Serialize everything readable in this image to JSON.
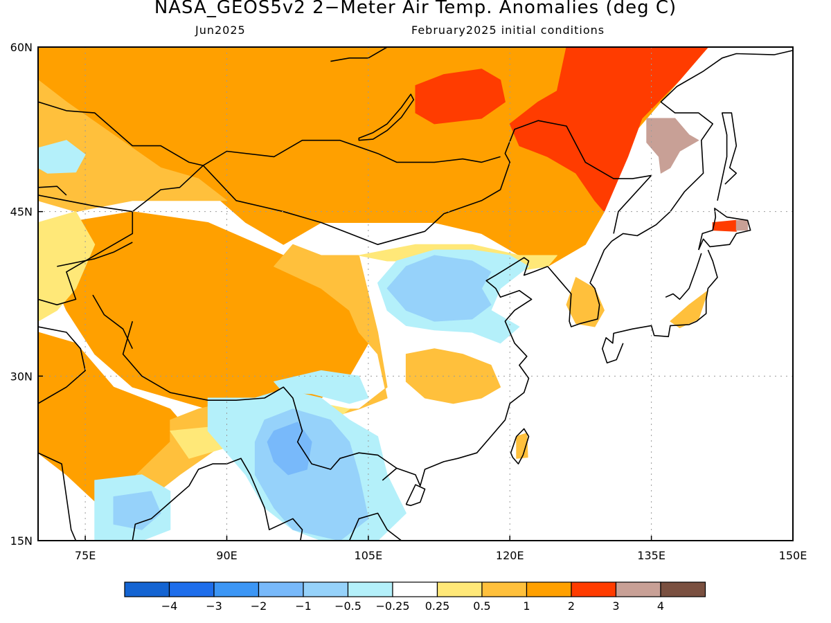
{
  "header": {
    "title": "NASA_GEOS5v2 2−Meter Air Temp. Anomalies (deg C)",
    "valid_month": "Jun2025",
    "init_conditions": "February2025 initial conditions"
  },
  "map": {
    "lon_range": [
      70,
      150
    ],
    "lat_range": [
      15,
      60
    ],
    "lat_ticks": [
      {
        "value": 15,
        "label": "15N"
      },
      {
        "value": 30,
        "label": "30N"
      },
      {
        "value": 45,
        "label": "45N"
      },
      {
        "value": 60,
        "label": "60N"
      }
    ],
    "lon_ticks": [
      {
        "value": 75,
        "label": "75E"
      },
      {
        "value": 90,
        "label": "90E"
      },
      {
        "value": 105,
        "label": "105E"
      },
      {
        "value": 120,
        "label": "120E"
      },
      {
        "value": 135,
        "label": "135E"
      },
      {
        "value": 150,
        "label": "150E"
      }
    ],
    "grid_lines": true,
    "background_color": "#ffffff"
  },
  "colorbar": {
    "colors": [
      "#1464d2",
      "#1e6eeb",
      "#3c96f5",
      "#78b9fa",
      "#96d2fa",
      "#b4f0fa",
      "#ffffff",
      "#ffe878",
      "#ffc03c",
      "#ffa000",
      "#ff3c00",
      "#c8a096",
      "#7a5040"
    ],
    "labels": [
      "−4",
      "−3",
      "−2",
      "−1",
      "−0.5",
      "−0.25",
      "0.25",
      "0.5",
      "1",
      "2",
      "3",
      "4"
    ]
  },
  "chart_data": {
    "type": "heatmap",
    "title": "NASA_GEOS5v2 2−Meter Air Temp. Anomalies (deg C)",
    "subtitle": "Jun2025 | February2025 initial conditions",
    "xlabel": "",
    "ylabel": "",
    "xlim": [
      70,
      150
    ],
    "ylim": [
      15,
      60
    ],
    "units": "deg C",
    "levels": [
      -4,
      -3,
      -2,
      -1,
      -0.5,
      -0.25,
      0.25,
      0.5,
      1,
      2,
      3,
      4
    ],
    "regions": [
      {
        "anomaly": 1.5,
        "polygon": [
          [
            70,
            60
          ],
          [
            141,
            60
          ],
          [
            138,
            57
          ],
          [
            132,
            51
          ],
          [
            130,
            45
          ],
          [
            128,
            42
          ],
          [
            124,
            40
          ],
          [
            121,
            41
          ],
          [
            117,
            43
          ],
          [
            112,
            44
          ],
          [
            106,
            44
          ],
          [
            100,
            44
          ],
          [
            96,
            42
          ],
          [
            92,
            44
          ],
          [
            88,
            47
          ],
          [
            82,
            47
          ],
          [
            77,
            50
          ],
          [
            72,
            55
          ],
          [
            70,
            56
          ]
        ]
      },
      {
        "anomaly": 1.5,
        "polygon": [
          [
            73,
            44
          ],
          [
            80,
            45
          ],
          [
            88,
            44
          ],
          [
            96,
            41
          ],
          [
            101,
            40
          ],
          [
            104,
            37
          ],
          [
            105,
            33
          ],
          [
            103,
            30
          ],
          [
            100,
            28
          ],
          [
            96,
            28
          ],
          [
            92,
            28
          ],
          [
            88,
            27
          ],
          [
            84,
            28
          ],
          [
            80,
            29
          ],
          [
            76,
            32
          ],
          [
            73,
            36
          ],
          [
            71,
            40
          ]
        ]
      },
      {
        "anomaly": 1.5,
        "polygon": [
          [
            70,
            34
          ],
          [
            74,
            33
          ],
          [
            78,
            29
          ],
          [
            84,
            27
          ],
          [
            86,
            25
          ],
          [
            82,
            22
          ],
          [
            80,
            20
          ],
          [
            78,
            17
          ],
          [
            73,
            21
          ],
          [
            70,
            23
          ]
        ]
      },
      {
        "anomaly": 0.75,
        "polygon": [
          [
            70,
            57
          ],
          [
            73,
            55
          ],
          [
            78,
            52
          ],
          [
            83,
            49
          ],
          [
            87,
            48
          ],
          [
            90,
            46
          ],
          [
            80,
            46
          ],
          [
            74,
            45
          ],
          [
            70,
            46
          ]
        ]
      },
      {
        "anomaly": 0.75,
        "polygon": [
          [
            104,
            41
          ],
          [
            100,
            41
          ],
          [
            97,
            42
          ],
          [
            95,
            40
          ],
          [
            100,
            38
          ],
          [
            103,
            36
          ],
          [
            104,
            34
          ],
          [
            106,
            32
          ],
          [
            107,
            28
          ],
          [
            104,
            27
          ],
          [
            100,
            26
          ],
          [
            95,
            28
          ],
          [
            92,
            28
          ],
          [
            87,
            27
          ],
          [
            84,
            26
          ],
          [
            84,
            24
          ],
          [
            78,
            19
          ],
          [
            79,
            17
          ],
          [
            85,
            21
          ],
          [
            90,
            24
          ],
          [
            95,
            26
          ],
          [
            100,
            27
          ],
          [
            104,
            27
          ],
          [
            107,
            29
          ],
          [
            106,
            34
          ]
        ]
      },
      {
        "anomaly": 0.75,
        "polygon": [
          [
            109,
            32
          ],
          [
            112,
            32.5
          ],
          [
            115,
            32
          ],
          [
            118,
            31
          ],
          [
            119,
            29
          ],
          [
            117,
            28
          ],
          [
            114,
            27.5
          ],
          [
            111,
            28
          ],
          [
            109,
            29.5
          ]
        ]
      },
      {
        "anomaly": 0.75,
        "polygon": [
          [
            127,
            39
          ],
          [
            129,
            38
          ],
          [
            130,
            36
          ],
          [
            129,
            34.5
          ],
          [
            127,
            34.8
          ],
          [
            126,
            36.5
          ]
        ]
      },
      {
        "anomaly": 0.75,
        "polygon": [
          [
            137,
            35
          ],
          [
            139,
            36.5
          ],
          [
            141,
            37.8
          ],
          [
            140,
            35.2
          ],
          [
            138,
            34.4
          ]
        ]
      },
      {
        "anomaly": 0.75,
        "polygon": [
          [
            120.7,
            24.5
          ],
          [
            121.8,
            24.8
          ],
          [
            121.9,
            22.6
          ],
          [
            120.7,
            22.5
          ]
        ]
      },
      {
        "anomaly": 0.375,
        "polygon": [
          [
            104,
            41
          ],
          [
            110,
            42
          ],
          [
            116,
            42
          ],
          [
            121,
            41
          ],
          [
            125,
            41
          ],
          [
            124,
            40
          ],
          [
            120,
            39.5
          ],
          [
            116,
            39.8
          ],
          [
            112,
            40.5
          ],
          [
            107,
            40.5
          ]
        ]
      },
      {
        "anomaly": 0.375,
        "polygon": [
          [
            70,
            44
          ],
          [
            74,
            45
          ],
          [
            76,
            42
          ],
          [
            74,
            38
          ],
          [
            72,
            36
          ],
          [
            70,
            35
          ]
        ]
      },
      {
        "anomaly": 0.375,
        "polygon": [
          [
            84,
            25
          ],
          [
            90,
            25.5
          ],
          [
            95,
            27
          ],
          [
            100,
            27.5
          ],
          [
            103,
            27
          ],
          [
            100,
            25
          ],
          [
            95,
            25
          ],
          [
            90,
            23.5
          ],
          [
            86,
            22.5
          ]
        ]
      },
      {
        "anomaly": -0.375,
        "polygon": [
          [
            108,
            40.5
          ],
          [
            112,
            41.5
          ],
          [
            116,
            41.5
          ],
          [
            120,
            41
          ],
          [
            122,
            40
          ],
          [
            119,
            38
          ],
          [
            118,
            36
          ],
          [
            121,
            34.5
          ],
          [
            119,
            33
          ],
          [
            116,
            34
          ],
          [
            112,
            34.2
          ],
          [
            109,
            34.6
          ],
          [
            107,
            36
          ],
          [
            106,
            38.5
          ]
        ]
      },
      {
        "anomaly": -0.375,
        "polygon": [
          [
            88,
            28
          ],
          [
            93,
            28
          ],
          [
            96,
            28.8
          ],
          [
            100,
            28
          ],
          [
            103,
            26
          ],
          [
            106,
            24.5
          ],
          [
            107,
            21
          ],
          [
            109,
            17.5
          ],
          [
            106,
            15
          ],
          [
            100,
            15
          ],
          [
            97,
            16
          ],
          [
            94,
            18
          ],
          [
            92,
            21
          ],
          [
            90,
            23
          ],
          [
            88,
            25
          ]
        ]
      },
      {
        "anomaly": -0.375,
        "polygon": [
          [
            76,
            20.5
          ],
          [
            81,
            21
          ],
          [
            84,
            19.5
          ],
          [
            84,
            16
          ],
          [
            81,
            15
          ],
          [
            76,
            15
          ]
        ]
      },
      {
        "anomaly": -0.375,
        "polygon": [
          [
            70,
            50.8
          ],
          [
            73,
            51.5
          ],
          [
            75,
            50.2
          ],
          [
            74,
            48.6
          ],
          [
            71,
            48.5
          ],
          [
            70,
            49
          ]
        ]
      },
      {
        "anomaly": -0.375,
        "polygon": [
          [
            95,
            29.5
          ],
          [
            100,
            30.5
          ],
          [
            104,
            30
          ],
          [
            105,
            28
          ],
          [
            103,
            27.5
          ],
          [
            99,
            28.4
          ],
          [
            96,
            28.5
          ]
        ]
      },
      {
        "anomaly": -0.75,
        "polygon": [
          [
            109,
            40
          ],
          [
            112,
            41
          ],
          [
            116,
            40.5
          ],
          [
            118,
            39.5
          ],
          [
            117,
            38
          ],
          [
            118,
            36.5
          ],
          [
            116,
            35.2
          ],
          [
            112,
            35
          ],
          [
            109,
            36
          ],
          [
            107,
            38
          ]
        ]
      },
      {
        "anomaly": -0.75,
        "polygon": [
          [
            94,
            26
          ],
          [
            97,
            27
          ],
          [
            101,
            26
          ],
          [
            103,
            24
          ],
          [
            104,
            21
          ],
          [
            105,
            17
          ],
          [
            102,
            15
          ],
          [
            97,
            16
          ],
          [
            95,
            18
          ],
          [
            93,
            21
          ],
          [
            93,
            24
          ]
        ]
      },
      {
        "anomaly": -0.75,
        "polygon": [
          [
            78,
            19
          ],
          [
            82,
            19.5
          ],
          [
            83,
            17.5
          ],
          [
            81,
            16
          ],
          [
            78,
            16.5
          ]
        ]
      },
      {
        "anomaly": -1.5,
        "polygon": [
          [
            95,
            25
          ],
          [
            97.5,
            25.8
          ],
          [
            99,
            24
          ],
          [
            98.5,
            21.5
          ],
          [
            96.5,
            21
          ],
          [
            95,
            22.2
          ],
          [
            94.3,
            24
          ]
        ]
      },
      {
        "anomaly": 2.5,
        "polygon": [
          [
            126,
            60
          ],
          [
            141,
            60
          ],
          [
            138,
            57
          ],
          [
            134,
            53.5
          ],
          [
            132.5,
            50
          ],
          [
            131,
            47
          ],
          [
            130,
            45
          ],
          [
            129,
            46
          ],
          [
            127,
            48.5
          ],
          [
            124,
            50
          ],
          [
            121,
            51
          ],
          [
            120,
            53
          ],
          [
            123,
            55
          ],
          [
            125,
            56
          ]
        ]
      },
      {
        "anomaly": 2.5,
        "polygon": [
          [
            110,
            56.5
          ],
          [
            113,
            57.5
          ],
          [
            117,
            58
          ],
          [
            119,
            57
          ],
          [
            119.5,
            55
          ],
          [
            117,
            53.5
          ],
          [
            112,
            53
          ],
          [
            110,
            54
          ]
        ]
      },
      {
        "anomaly": 2.5,
        "polygon": [
          [
            141.5,
            44
          ],
          [
            144,
            44.2
          ],
          [
            144,
            43.2
          ],
          [
            141.5,
            43.3
          ]
        ]
      },
      {
        "anomaly": 3.5,
        "polygon": [
          [
            134.5,
            53.5
          ],
          [
            137.5,
            53.5
          ],
          [
            139,
            52
          ],
          [
            140,
            51.5
          ],
          [
            138,
            50.5
          ],
          [
            137,
            49
          ],
          [
            136,
            48.5
          ],
          [
            135.8,
            50
          ],
          [
            134.5,
            51.3
          ]
        ]
      },
      {
        "anomaly": 3.5,
        "polygon": [
          [
            144,
            44.2
          ],
          [
            145.2,
            44.2
          ],
          [
            145.2,
            43.3
          ],
          [
            144,
            43.3
          ]
        ]
      }
    ]
  }
}
